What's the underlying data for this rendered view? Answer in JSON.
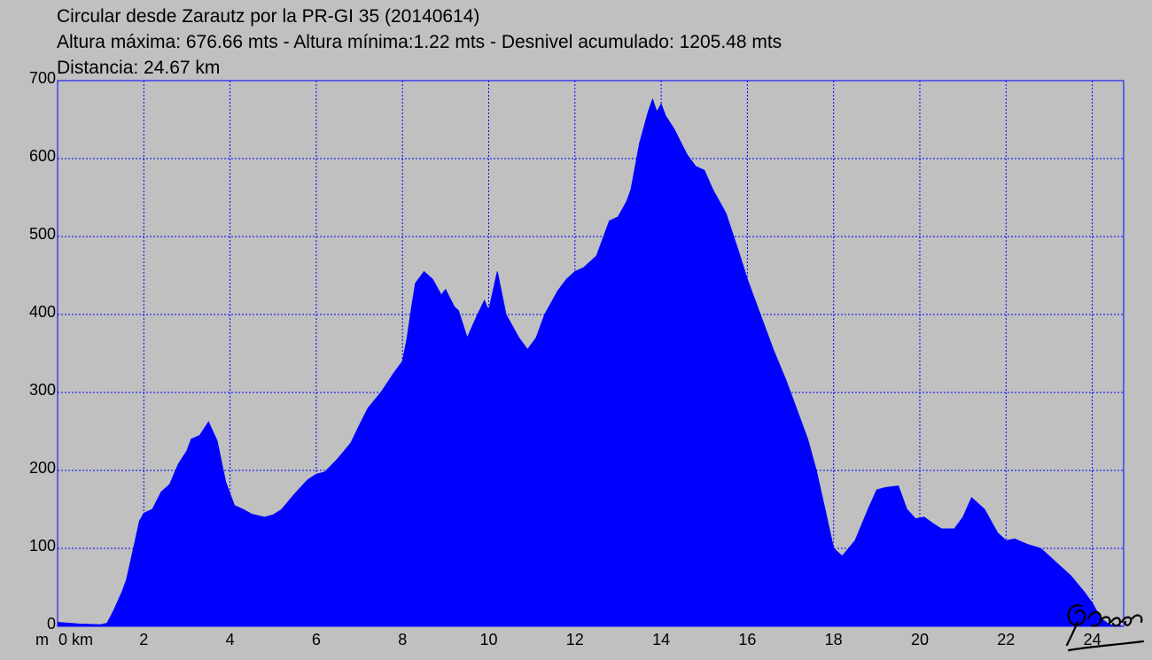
{
  "header": {
    "line1": "Circular desde Zarautz por la PR-GI 35 (20140614)",
    "line2": "Altura máxima: 676.66 mts - Altura mínima:1.22 mts - Desnivel acumulado: 1205.48 mts",
    "line3": "Distancia: 24.67 km"
  },
  "chart_data": {
    "type": "area",
    "title": "Circular desde Zarautz por la PR-GI 35 (20140614)",
    "xlabel": "km",
    "ylabel": "m",
    "xlim": [
      0,
      24.67
    ],
    "ylim": [
      0,
      700
    ],
    "grid": true,
    "fill_color": "#0000ff",
    "grid_color": "#0000ff",
    "background_color": "#c0c0c0",
    "y_ticks": [
      "0",
      "100",
      "200",
      "300",
      "400",
      "500",
      "600",
      "700"
    ],
    "x_ticks": [
      "0 km",
      "2",
      "4",
      "6",
      "8",
      "10",
      "12",
      "14",
      "16",
      "18",
      "20",
      "22",
      "24"
    ],
    "x_tick_values": [
      0,
      2,
      4,
      6,
      8,
      10,
      12,
      14,
      16,
      18,
      20,
      22,
      24
    ],
    "y_unit_label": "m",
    "x": [
      0,
      0.5,
      1.0,
      1.15,
      1.3,
      1.5,
      1.6,
      1.8,
      1.9,
      2.0,
      2.2,
      2.4,
      2.6,
      2.8,
      3.0,
      3.1,
      3.3,
      3.5,
      3.7,
      3.9,
      4.1,
      4.3,
      4.5,
      4.8,
      5.0,
      5.2,
      5.5,
      5.8,
      6.0,
      6.2,
      6.5,
      6.8,
      7.0,
      7.2,
      7.5,
      7.8,
      8.0,
      8.1,
      8.2,
      8.3,
      8.5,
      8.7,
      8.9,
      9.0,
      9.2,
      9.3,
      9.5,
      9.7,
      9.9,
      10.0,
      10.2,
      10.4,
      10.7,
      10.9,
      11.1,
      11.3,
      11.6,
      11.8,
      12.0,
      12.2,
      12.5,
      12.8,
      13.0,
      13.2,
      13.3,
      13.5,
      13.7,
      13.8,
      13.9,
      14.0,
      14.1,
      14.3,
      14.6,
      14.8,
      15.0,
      15.2,
      15.5,
      15.8,
      16.0,
      16.3,
      16.6,
      16.9,
      17.1,
      17.4,
      17.6,
      17.8,
      18.0,
      18.2,
      18.5,
      18.8,
      19.0,
      19.2,
      19.5,
      19.7,
      19.9,
      20.1,
      20.3,
      20.5,
      20.8,
      21.0,
      21.2,
      21.5,
      21.8,
      22.0,
      22.2,
      22.5,
      22.8,
      23.0,
      23.2,
      23.5,
      23.8,
      24.0,
      24.2,
      24.4,
      24.67
    ],
    "y": [
      5,
      3,
      2,
      4,
      20,
      45,
      60,
      110,
      135,
      145,
      150,
      172,
      182,
      208,
      225,
      240,
      245,
      262,
      238,
      185,
      155,
      150,
      144,
      140,
      143,
      150,
      170,
      188,
      195,
      198,
      215,
      235,
      258,
      280,
      300,
      325,
      340,
      368,
      405,
      440,
      455,
      445,
      425,
      432,
      410,
      405,
      370,
      395,
      418,
      405,
      455,
      400,
      370,
      355,
      370,
      400,
      430,
      445,
      455,
      460,
      475,
      520,
      525,
      545,
      560,
      620,
      660,
      676,
      660,
      670,
      655,
      638,
      605,
      590,
      585,
      560,
      530,
      480,
      445,
      400,
      355,
      315,
      285,
      240,
      200,
      150,
      100,
      90,
      110,
      150,
      175,
      178,
      180,
      150,
      138,
      140,
      132,
      125,
      125,
      140,
      165,
      150,
      120,
      110,
      112,
      105,
      100,
      90,
      80,
      65,
      45,
      30,
      10,
      2,
      1
    ]
  },
  "logo": {
    "icon": "signature-logo",
    "text": "Elgacho"
  }
}
